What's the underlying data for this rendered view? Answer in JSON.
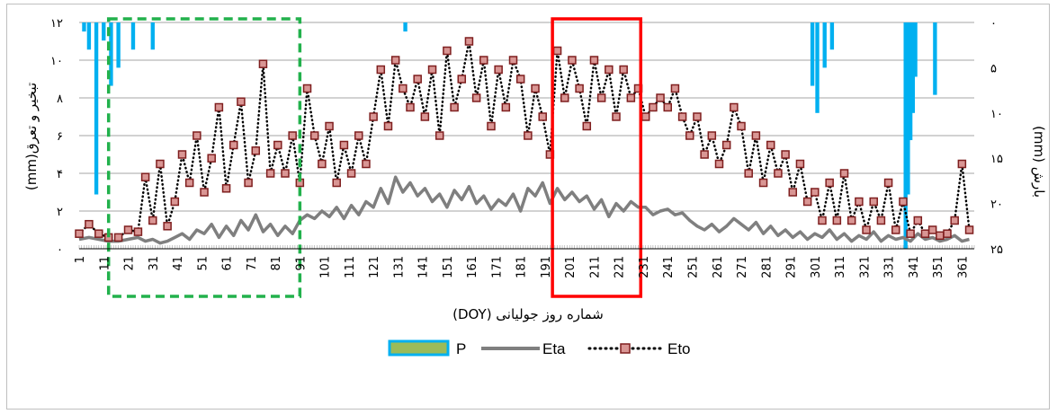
{
  "chart_data": {
    "type": "line",
    "xlabel": "شماره روز جولیانی (DOY)",
    "ylabel_left": "تبخیر و تعرق(mm)",
    "ylabel_right": "بارش (mm)",
    "x_ticks": [
      1,
      11,
      21,
      31,
      41,
      51,
      61,
      71,
      81,
      91,
      101,
      111,
      121,
      131,
      141,
      151,
      161,
      171,
      181,
      191,
      201,
      211,
      221,
      231,
      241,
      251,
      261,
      271,
      281,
      291,
      301,
      311,
      321,
      331,
      341,
      351,
      361
    ],
    "x_range": [
      1,
      366
    ],
    "y_left_ticks": [
      "۰",
      "۲",
      "۴",
      "۶",
      "۸",
      "۱۰",
      "۱۲"
    ],
    "y_left_range": [
      0,
      12
    ],
    "y_right_ticks": [
      "۰",
      "۵",
      "۱۰",
      "۱۵",
      "۲۰",
      "۲۵"
    ],
    "y_right_range": [
      0,
      25
    ],
    "y_right_inverted": true,
    "grid": true,
    "legend_position": "bottom",
    "legend": [
      "P",
      "Eta",
      "Eto"
    ],
    "highlights": [
      {
        "style": "dashed",
        "color": "#22b14c",
        "x_from": 13,
        "x_to": 91
      },
      {
        "style": "solid",
        "color": "#ff0000",
        "x_from": 194,
        "x_to": 230
      }
    ],
    "series": [
      {
        "name": "Eto",
        "axis": "left",
        "style": "dotted-line-square-markers",
        "color": "#7f1f1f",
        "marker_fill": "#d99694",
        "x": [
          1,
          5,
          9,
          13,
          17,
          21,
          25,
          28,
          31,
          34,
          37,
          40,
          43,
          46,
          49,
          52,
          55,
          58,
          61,
          64,
          67,
          70,
          73,
          76,
          79,
          82,
          85,
          88,
          91,
          94,
          97,
          100,
          103,
          106,
          109,
          112,
          115,
          118,
          121,
          124,
          127,
          130,
          133,
          136,
          139,
          142,
          145,
          148,
          151,
          154,
          157,
          160,
          163,
          166,
          169,
          172,
          175,
          178,
          181,
          184,
          187,
          190,
          193,
          196,
          199,
          202,
          205,
          208,
          211,
          214,
          217,
          220,
          223,
          226,
          229,
          232,
          235,
          238,
          241,
          244,
          247,
          250,
          253,
          256,
          259,
          262,
          265,
          268,
          271,
          274,
          277,
          280,
          283,
          286,
          289,
          292,
          295,
          298,
          301,
          304,
          307,
          310,
          313,
          316,
          319,
          322,
          325,
          328,
          331,
          334,
          337,
          340,
          343,
          346,
          349,
          352,
          355,
          358,
          361,
          364
        ],
        "y": [
          0.8,
          1.3,
          0.8,
          0.6,
          0.6,
          1.0,
          0.9,
          3.8,
          1.5,
          4.5,
          1.2,
          2.5,
          5.0,
          3.5,
          6.0,
          3.0,
          4.8,
          7.5,
          3.2,
          5.5,
          7.8,
          3.5,
          5.2,
          9.8,
          4.0,
          5.5,
          4.0,
          6.0,
          3.5,
          8.5,
          6.0,
          4.5,
          6.5,
          3.5,
          5.5,
          4.0,
          6.0,
          4.5,
          7.0,
          9.5,
          6.5,
          10.0,
          8.5,
          7.5,
          9.0,
          7.0,
          9.5,
          6.0,
          10.5,
          7.5,
          9.0,
          11.0,
          8.0,
          10.0,
          6.5,
          9.5,
          7.5,
          10.0,
          9.0,
          6.0,
          8.5,
          7.0,
          5.0,
          10.5,
          8.0,
          10.0,
          8.5,
          6.5,
          10.0,
          8.0,
          9.5,
          7.0,
          9.5,
          8.0,
          8.5,
          7.0,
          7.5,
          8.0,
          7.5,
          8.5,
          7.0,
          6.0,
          7.0,
          5.0,
          6.0,
          4.5,
          5.5,
          7.5,
          6.5,
          4.0,
          6.0,
          3.5,
          5.5,
          4.0,
          5.0,
          3.0,
          4.5,
          2.5,
          3.0,
          1.5,
          3.5,
          1.5,
          4.0,
          1.5,
          2.5,
          1.0,
          2.5,
          1.5,
          3.5,
          1.0,
          2.5,
          0.8,
          1.5,
          0.8,
          1.0,
          0.7,
          0.8,
          1.5,
          4.5,
          1.0
        ]
      },
      {
        "name": "Eta",
        "axis": "left",
        "style": "line",
        "color": "#7f7f7f",
        "x": [
          1,
          5,
          9,
          13,
          17,
          21,
          25,
          28,
          31,
          34,
          37,
          40,
          43,
          46,
          49,
          52,
          55,
          58,
          61,
          64,
          67,
          70,
          73,
          76,
          79,
          82,
          85,
          88,
          91,
          94,
          97,
          100,
          103,
          106,
          109,
          112,
          115,
          118,
          121,
          124,
          127,
          130,
          133,
          136,
          139,
          142,
          145,
          148,
          151,
          154,
          157,
          160,
          163,
          166,
          169,
          172,
          175,
          178,
          181,
          184,
          187,
          190,
          193,
          196,
          199,
          202,
          205,
          208,
          211,
          214,
          217,
          220,
          223,
          226,
          229,
          232,
          235,
          238,
          241,
          244,
          247,
          250,
          253,
          256,
          259,
          262,
          265,
          268,
          271,
          274,
          277,
          280,
          283,
          286,
          289,
          292,
          295,
          298,
          301,
          304,
          307,
          310,
          313,
          316,
          319,
          322,
          325,
          328,
          331,
          334,
          337,
          340,
          343,
          346,
          349,
          352,
          355,
          358,
          361,
          364
        ],
        "y": [
          0.5,
          0.6,
          0.5,
          0.4,
          0.4,
          0.5,
          0.6,
          0.4,
          0.5,
          0.3,
          0.4,
          0.6,
          0.8,
          0.5,
          1.0,
          0.8,
          1.3,
          0.6,
          1.2,
          0.7,
          1.5,
          1.0,
          1.8,
          0.9,
          1.3,
          0.7,
          1.2,
          0.8,
          1.5,
          1.8,
          1.6,
          2.0,
          1.7,
          2.2,
          1.6,
          2.3,
          1.8,
          2.5,
          2.2,
          3.2,
          2.4,
          3.8,
          3.0,
          3.5,
          2.8,
          3.2,
          2.5,
          2.9,
          2.2,
          3.1,
          2.6,
          3.3,
          2.4,
          2.8,
          2.1,
          2.6,
          2.3,
          2.9,
          2.0,
          3.2,
          2.8,
          3.5,
          2.4,
          3.2,
          2.6,
          3.0,
          2.5,
          2.8,
          2.1,
          2.6,
          1.7,
          2.4,
          2.0,
          2.5,
          2.2,
          2.2,
          1.8,
          2.0,
          2.1,
          1.8,
          1.9,
          1.5,
          1.2,
          1.0,
          1.3,
          0.9,
          1.2,
          1.6,
          1.3,
          1.0,
          1.4,
          0.8,
          1.2,
          0.7,
          1.0,
          0.6,
          0.9,
          0.5,
          0.8,
          0.6,
          1.0,
          0.5,
          0.8,
          0.4,
          0.7,
          0.5,
          0.9,
          0.4,
          0.7,
          0.5,
          0.6,
          0.4,
          0.8,
          0.5,
          0.6,
          0.4,
          0.5,
          0.7,
          0.4,
          0.5
        ]
      },
      {
        "name": "P",
        "axis": "right",
        "style": "bar",
        "color": "#00b0f0",
        "legend_fill": "#9bbb59",
        "x": [
          3,
          5,
          8,
          11,
          14,
          17,
          23,
          31,
          134,
          300,
          302,
          305,
          308,
          338,
          339,
          340,
          341,
          342,
          350
        ],
        "y": [
          1.0,
          3.0,
          19.0,
          2.0,
          7.0,
          5.0,
          3.0,
          3.0,
          1.0,
          7.0,
          10.0,
          5.0,
          3.0,
          28.0,
          19.0,
          13.0,
          10.0,
          6.0,
          8.0
        ]
      }
    ]
  }
}
